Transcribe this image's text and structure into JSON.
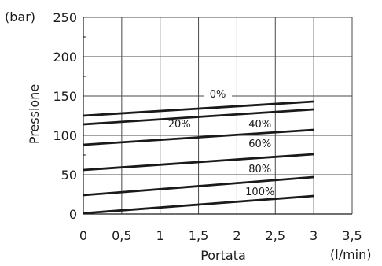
{
  "chart_data": {
    "type": "line",
    "title": "",
    "xlabel": "Portata",
    "ylabel": "Pressione",
    "x_unit": "(l/min)",
    "y_unit": "(bar)",
    "xlim": [
      0,
      3.5
    ],
    "ylim": [
      0,
      250
    ],
    "x_ticks": [
      {
        "value": 0,
        "label": "0"
      },
      {
        "value": 0.5,
        "label": "0,5"
      },
      {
        "value": 1,
        "label": "1"
      },
      {
        "value": 1.5,
        "label": "1,5"
      },
      {
        "value": 2,
        "label": "2"
      },
      {
        "value": 2.5,
        "label": "2,5"
      },
      {
        "value": 3,
        "label": "3"
      },
      {
        "value": 3.5,
        "label": "3,5"
      }
    ],
    "y_ticks": [
      {
        "value": 0,
        "label": "0"
      },
      {
        "value": 50,
        "label": "50"
      },
      {
        "value": 100,
        "label": "100"
      },
      {
        "value": 150,
        "label": "150"
      },
      {
        "value": 200,
        "label": "200"
      },
      {
        "value": 250,
        "label": "250"
      }
    ],
    "grid": true,
    "line_color": "#1a1a1a",
    "series": [
      {
        "name": "0%",
        "x": [
          0,
          3
        ],
        "y": [
          125,
          143
        ]
      },
      {
        "name": "20%",
        "x": [
          0,
          3
        ],
        "y": [
          114,
          133
        ]
      },
      {
        "name": "40%",
        "x": [
          0,
          3
        ],
        "y": [
          114,
          133
        ]
      },
      {
        "name": "60%",
        "x": [
          0,
          3
        ],
        "y": [
          88,
          107
        ]
      },
      {
        "name": "80%",
        "x": [
          0,
          3
        ],
        "y": [
          56,
          76
        ]
      },
      {
        "name": "100%",
        "x": [
          0,
          3
        ],
        "y": [
          24,
          47
        ]
      },
      {
        "name": "",
        "x": [
          0,
          3
        ],
        "y": [
          1,
          23
        ]
      }
    ]
  }
}
